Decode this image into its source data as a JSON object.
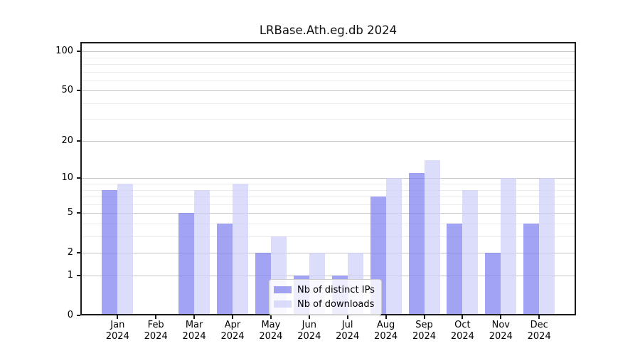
{
  "chart_data": {
    "type": "bar",
    "title": "LRBase.Ath.eg.db 2024",
    "categories": [
      "Jan 2024",
      "Feb 2024",
      "Mar 2024",
      "Apr 2024",
      "May 2024",
      "Jun 2024",
      "Jul 2024",
      "Aug 2024",
      "Sep 2024",
      "Oct 2024",
      "Nov 2024",
      "Dec 2024"
    ],
    "series": [
      {
        "name": "Nb of distinct IPs",
        "color": "#8080f0",
        "opacity": 0.72,
        "values": [
          8,
          0,
          5,
          4,
          2,
          1,
          1,
          7,
          11,
          4,
          2,
          4
        ]
      },
      {
        "name": "Nb of downloads",
        "color": "#cecefa",
        "opacity": 0.72,
        "values": [
          9,
          0,
          8,
          9,
          3,
          2,
          2,
          10,
          14,
          8,
          10,
          10
        ]
      }
    ],
    "yscale": "log1p",
    "ylim": [
      0,
      118
    ],
    "y_tick_values": [
      0,
      1,
      2,
      5,
      10,
      20,
      50,
      100
    ],
    "y_tick_labels": [
      "0",
      "1",
      "2",
      "5",
      "10",
      "20",
      "50",
      "100"
    ],
    "y_minor_gridlines": [
      3,
      4,
      6,
      7,
      8,
      9,
      30,
      40,
      60,
      70,
      80,
      90
    ],
    "grid": true,
    "legend": {
      "position": "lower-center-inside",
      "items": [
        "Nb of distinct IPs",
        "Nb of downloads"
      ]
    }
  }
}
